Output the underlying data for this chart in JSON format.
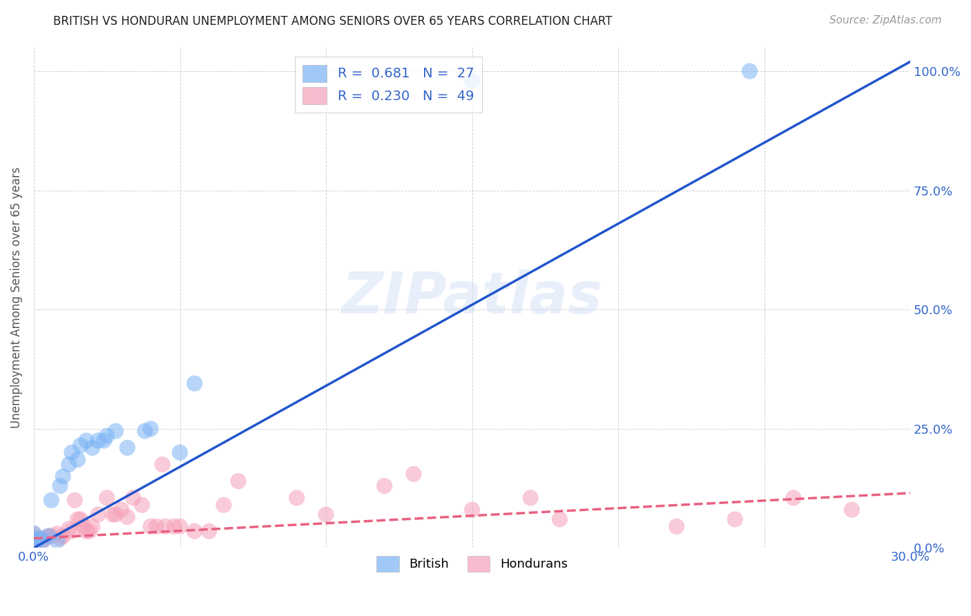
{
  "title": "BRITISH VS HONDURAN UNEMPLOYMENT AMONG SENIORS OVER 65 YEARS CORRELATION CHART",
  "source": "Source: ZipAtlas.com",
  "ylabel": "Unemployment Among Seniors over 65 years",
  "xlim": [
    0.0,
    0.3
  ],
  "ylim": [
    0.0,
    1.05
  ],
  "xtick_positions": [
    0.0,
    0.05,
    0.1,
    0.15,
    0.2,
    0.25,
    0.3
  ],
  "xtick_labels": [
    "0.0%",
    "",
    "",
    "",
    "",
    "",
    "30.0%"
  ],
  "ytick_positions": [
    0.0,
    0.25,
    0.5,
    0.75,
    1.0
  ],
  "ytick_labels_right": [
    "0.0%",
    "25.0%",
    "50.0%",
    "75.0%",
    "100.0%"
  ],
  "british_R": "0.681",
  "british_N": "27",
  "honduran_R": "0.230",
  "honduran_N": "49",
  "british_color": "#7ab3f5",
  "honduran_color": "#f5a0b8",
  "british_line_color": "#2255cc",
  "honduran_line_color": "#e86080",
  "watermark": "ZIPatlas",
  "british_line_x": [
    0.0,
    0.3
  ],
  "british_line_y": [
    0.0,
    1.02
  ],
  "honduran_line_x": [
    0.0,
    0.3
  ],
  "honduran_line_y": [
    0.02,
    0.115
  ],
  "british_points_x": [
    0.0,
    0.0,
    0.001,
    0.002,
    0.003,
    0.005,
    0.006,
    0.008,
    0.009,
    0.01,
    0.012,
    0.013,
    0.015,
    0.016,
    0.018,
    0.02,
    0.022,
    0.024,
    0.025,
    0.028,
    0.032,
    0.038,
    0.04,
    0.05,
    0.055,
    0.15,
    0.245
  ],
  "british_points_y": [
    0.02,
    0.03,
    0.015,
    0.02,
    0.015,
    0.025,
    0.1,
    0.015,
    0.13,
    0.15,
    0.175,
    0.2,
    0.185,
    0.215,
    0.225,
    0.21,
    0.225,
    0.225,
    0.235,
    0.245,
    0.21,
    0.245,
    0.25,
    0.2,
    0.345,
    0.98,
    1.0
  ],
  "honduran_points_x": [
    0.0,
    0.0,
    0.001,
    0.002,
    0.003,
    0.004,
    0.005,
    0.006,
    0.008,
    0.009,
    0.01,
    0.012,
    0.013,
    0.014,
    0.015,
    0.016,
    0.017,
    0.018,
    0.019,
    0.02,
    0.022,
    0.025,
    0.027,
    0.028,
    0.03,
    0.032,
    0.034,
    0.037,
    0.04,
    0.042,
    0.044,
    0.045,
    0.048,
    0.05,
    0.055,
    0.06,
    0.065,
    0.07,
    0.09,
    0.1,
    0.12,
    0.13,
    0.15,
    0.17,
    0.18,
    0.22,
    0.24,
    0.26,
    0.28
  ],
  "honduran_points_y": [
    0.02,
    0.03,
    0.015,
    0.02,
    0.015,
    0.02,
    0.025,
    0.025,
    0.03,
    0.02,
    0.025,
    0.04,
    0.035,
    0.1,
    0.06,
    0.06,
    0.045,
    0.035,
    0.035,
    0.045,
    0.07,
    0.105,
    0.07,
    0.07,
    0.08,
    0.065,
    0.105,
    0.09,
    0.045,
    0.045,
    0.175,
    0.045,
    0.045,
    0.045,
    0.035,
    0.035,
    0.09,
    0.14,
    0.105,
    0.07,
    0.13,
    0.155,
    0.08,
    0.105,
    0.06,
    0.045,
    0.06,
    0.105,
    0.08
  ]
}
